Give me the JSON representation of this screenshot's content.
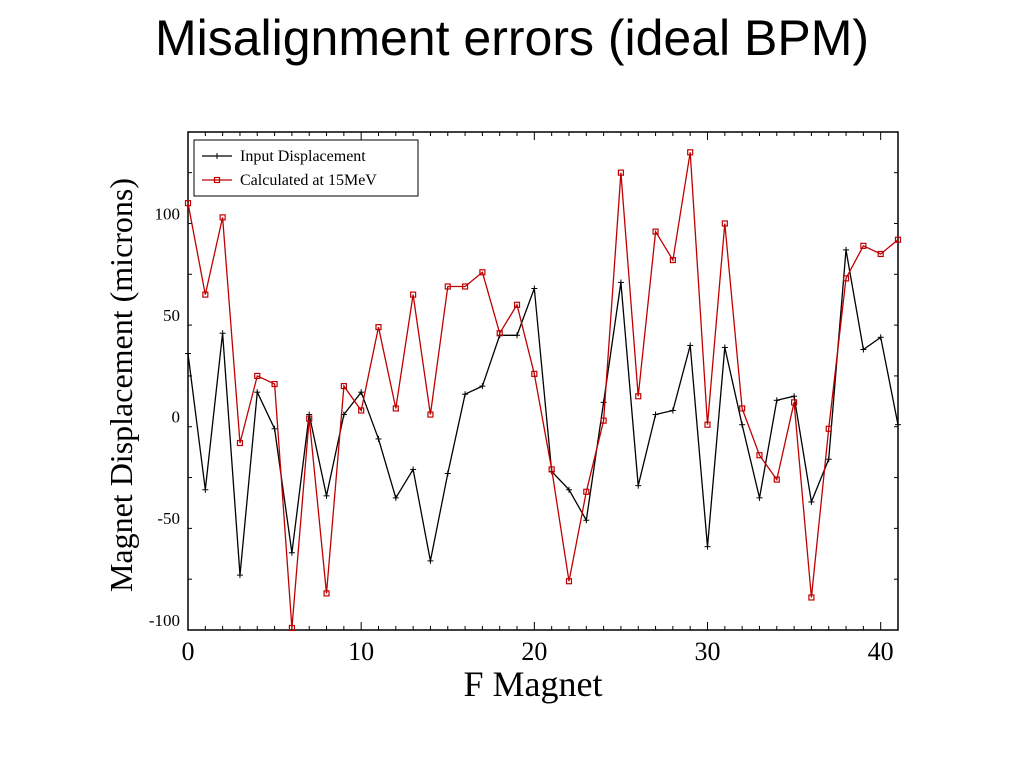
{
  "slide": {
    "title": "Misalignment errors (ideal BPM)"
  },
  "chart_data": {
    "type": "line",
    "xlabel": "F Magnet",
    "ylabel": "Magnet Displacement (microns)",
    "xlim": [
      0,
      41
    ],
    "ylim": [
      -105,
      140
    ],
    "xticks": [
      0,
      10,
      20,
      30,
      40
    ],
    "yticks": [
      -100,
      -50,
      0,
      50,
      100
    ],
    "legend_position": "top-left",
    "series": [
      {
        "name": "Input Displacement",
        "color": "#000000",
        "marker": "plus",
        "x": [
          0,
          1,
          2,
          3,
          4,
          5,
          6,
          7,
          8,
          9,
          10,
          11,
          12,
          13,
          14,
          15,
          16,
          17,
          18,
          19,
          20,
          21,
          22,
          23,
          24,
          25,
          26,
          27,
          28,
          29,
          30,
          31,
          32,
          33,
          34,
          35,
          36,
          37,
          38,
          39,
          40,
          41
        ],
        "values": [
          31,
          -36,
          41,
          -78,
          12,
          -6,
          -67,
          1,
          -39,
          1,
          12,
          -11,
          -40,
          -26,
          -71,
          -28,
          11,
          15,
          40,
          40,
          63,
          -27,
          -36,
          -51,
          7,
          66,
          -34,
          1,
          3,
          35,
          -64,
          34,
          -4,
          -40,
          8,
          10,
          -42,
          -21,
          82,
          33,
          39,
          -4
        ]
      },
      {
        "name": "Calculated at 15MeV",
        "color": "#c00000",
        "marker": "square",
        "x": [
          0,
          1,
          2,
          3,
          4,
          5,
          6,
          7,
          8,
          9,
          10,
          11,
          12,
          13,
          14,
          15,
          16,
          17,
          18,
          19,
          20,
          21,
          22,
          23,
          24,
          25,
          26,
          27,
          28,
          29,
          30,
          31,
          32,
          33,
          34,
          35,
          36,
          37,
          38,
          39,
          40,
          41
        ],
        "values": [
          105,
          60,
          98,
          -13,
          20,
          16,
          -104,
          -1,
          -87,
          15,
          3,
          44,
          4,
          60,
          1,
          64,
          64,
          71,
          41,
          55,
          21,
          -26,
          -81,
          -37,
          -2,
          120,
          10,
          91,
          77,
          130,
          -4,
          95,
          4,
          -19,
          -31,
          7,
          -89,
          -6,
          68,
          84,
          80,
          87
        ]
      }
    ]
  }
}
